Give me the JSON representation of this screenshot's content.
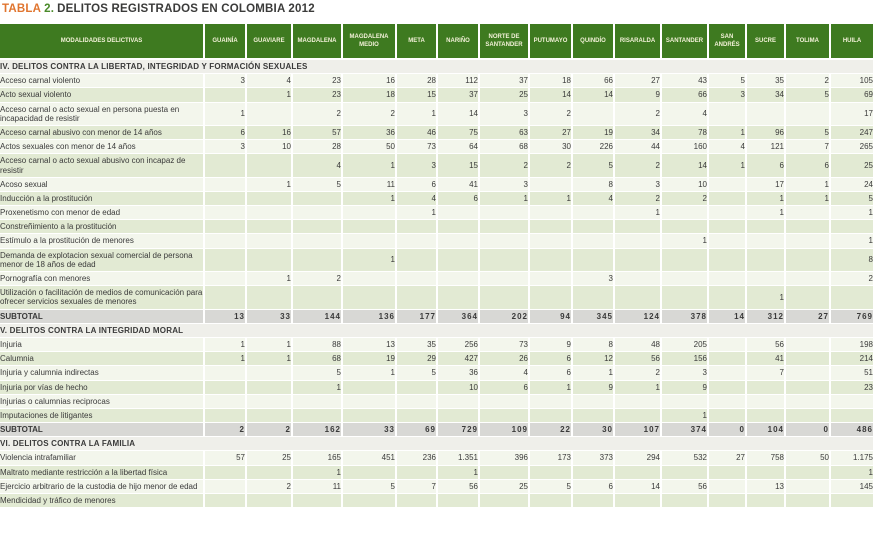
{
  "title": {
    "prefix": "TABLA",
    "number": "2.",
    "text": "DELITOS REGISTRADOS EN COLOMBIA 2012"
  },
  "colors": {
    "header_green": "#3e7a20",
    "header_text": "#f3f1d8",
    "row_light": "#f3f6ec",
    "row_green": "#e2ead3",
    "subtotal_gray": "#d8d8d5",
    "section_bg": "#efefea",
    "title_orange": "#e0752f",
    "title_green": "#4a8a2a",
    "text_dark": "#3b3b3a"
  },
  "table": {
    "label_header": "MODALIDADES DELICTIVAS",
    "columns": [
      "GUAINÍA",
      "GUAVIARE",
      "MAGDALENA",
      "MAGDALENA MEDIO",
      "META",
      "NARIÑO",
      "NORTE DE SANTANDER",
      "PUTUMAYO",
      "QUINDÍO",
      "RISARALDA",
      "SANTANDER",
      "SAN ANDRÉS",
      "SUCRE",
      "TOLIMA",
      "HUILA"
    ],
    "sections": [
      {
        "title": "IV. DELITOS CONTRA LA LIBERTAD, INTEGRIDAD Y FORMACIÓN SEXUALES",
        "rows": [
          {
            "label": "Acceso carnal violento",
            "values": [
              "3",
              "4",
              "23",
              "16",
              "28",
              "112",
              "37",
              "18",
              "66",
              "27",
              "43",
              "5",
              "35",
              "2",
              "105"
            ]
          },
          {
            "label": "Acto sexual violento",
            "values": [
              "",
              "1",
              "23",
              "18",
              "15",
              "37",
              "25",
              "14",
              "14",
              "9",
              "66",
              "3",
              "34",
              "5",
              "69"
            ]
          },
          {
            "label": "Acceso carnal o acto sexual en persona puesta en incapacidad de resistir",
            "values": [
              "1",
              "",
              "2",
              "2",
              "1",
              "14",
              "3",
              "2",
              "",
              "2",
              "4",
              "",
              "",
              "",
              "17"
            ]
          },
          {
            "label": "Acceso carnal abusivo con menor de 14 años",
            "values": [
              "6",
              "16",
              "57",
              "36",
              "46",
              "75",
              "63",
              "27",
              "19",
              "34",
              "78",
              "1",
              "96",
              "5",
              "247"
            ]
          },
          {
            "label": "Actos sexuales con menor de 14 años",
            "values": [
              "3",
              "10",
              "28",
              "50",
              "73",
              "64",
              "68",
              "30",
              "226",
              "44",
              "160",
              "4",
              "121",
              "7",
              "265"
            ]
          },
          {
            "label": "Acceso carnal o acto sexual abusivo con incapaz de resistir",
            "values": [
              "",
              "",
              "4",
              "1",
              "3",
              "15",
              "2",
              "2",
              "5",
              "2",
              "14",
              "1",
              "6",
              "6",
              "25"
            ]
          },
          {
            "label": "Acoso sexual",
            "values": [
              "",
              "1",
              "5",
              "11",
              "6",
              "41",
              "3",
              "",
              "8",
              "3",
              "10",
              "",
              "17",
              "1",
              "24"
            ]
          },
          {
            "label": "Inducción a la prostitución",
            "values": [
              "",
              "",
              "",
              "1",
              "4",
              "6",
              "1",
              "1",
              "4",
              "2",
              "2",
              "",
              "1",
              "1",
              "5"
            ]
          },
          {
            "label": "Proxenetismo con menor de edad",
            "values": [
              "",
              "",
              "",
              "",
              "1",
              "",
              "",
              "",
              "",
              "1",
              "",
              "",
              "1",
              "",
              "1"
            ]
          },
          {
            "label": "Constreñimiento a la prostitución",
            "values": [
              "",
              "",
              "",
              "",
              "",
              "",
              "",
              "",
              "",
              "",
              "",
              "",
              "",
              "",
              ""
            ]
          },
          {
            "label": "Estímulo a la prostitución de menores",
            "values": [
              "",
              "",
              "",
              "",
              "",
              "",
              "",
              "",
              "",
              "",
              "1",
              "",
              "",
              "",
              "1"
            ]
          },
          {
            "label": "Demanda de explotacion sexual comercial de persona menor de 18 años de edad",
            "values": [
              "",
              "",
              "",
              "1",
              "",
              "",
              "",
              "",
              "",
              "",
              "",
              "",
              "",
              "",
              "8"
            ]
          },
          {
            "label": "Pornografía con menores",
            "values": [
              "",
              "1",
              "2",
              "",
              "",
              "",
              "",
              "",
              "3",
              "",
              "",
              "",
              "",
              "",
              "2"
            ]
          },
          {
            "label": "Utilización o facilitación de medios de comunicación para ofrecer servicios sexuales de menores",
            "values": [
              "",
              "",
              "",
              "",
              "",
              "",
              "",
              "",
              "",
              "",
              "",
              "",
              "1",
              "",
              ""
            ]
          },
          {
            "label": "SUBTOTAL",
            "subtotal": true,
            "values": [
              "13",
              "33",
              "144",
              "136",
              "177",
              "364",
              "202",
              "94",
              "345",
              "124",
              "378",
              "14",
              "312",
              "27",
              "769"
            ]
          }
        ]
      },
      {
        "title": "V. DELITOS CONTRA LA INTEGRIDAD MORAL",
        "rows": [
          {
            "label": "Injuria",
            "values": [
              "1",
              "1",
              "88",
              "13",
              "35",
              "256",
              "73",
              "9",
              "8",
              "48",
              "205",
              "",
              "56",
              "",
              "198"
            ]
          },
          {
            "label": "Calumnia",
            "values": [
              "1",
              "1",
              "68",
              "19",
              "29",
              "427",
              "26",
              "6",
              "12",
              "56",
              "156",
              "",
              "41",
              "",
              "214"
            ]
          },
          {
            "label": "Injuria y calumnia indirectas",
            "values": [
              "",
              "",
              "5",
              "1",
              "5",
              "36",
              "4",
              "6",
              "1",
              "2",
              "3",
              "",
              "7",
              "",
              "51"
            ]
          },
          {
            "label": "Injuria por vías de hecho",
            "values": [
              "",
              "",
              "1",
              "",
              "",
              "10",
              "6",
              "1",
              "9",
              "1",
              "9",
              "",
              "",
              "",
              "23"
            ]
          },
          {
            "label": "Injurias o calumnias reciprocas",
            "values": [
              "",
              "",
              "",
              "",
              "",
              "",
              "",
              "",
              "",
              "",
              "",
              "",
              "",
              "",
              ""
            ]
          },
          {
            "label": "Imputaciones de litigantes",
            "values": [
              "",
              "",
              "",
              "",
              "",
              "",
              "",
              "",
              "",
              "",
              "1",
              "",
              "",
              "",
              ""
            ]
          },
          {
            "label": "SUBTOTAL",
            "subtotal": true,
            "values": [
              "2",
              "2",
              "162",
              "33",
              "69",
              "729",
              "109",
              "22",
              "30",
              "107",
              "374",
              "0",
              "104",
              "0",
              "486"
            ]
          }
        ]
      },
      {
        "title": "VI. DELITOS CONTRA LA FAMILIA",
        "rows": [
          {
            "label": "Violencia intrafamiliar",
            "values": [
              "57",
              "25",
              "165",
              "451",
              "236",
              "1.351",
              "396",
              "173",
              "373",
              "294",
              "532",
              "27",
              "758",
              "50",
              "1.175"
            ]
          },
          {
            "label": "Maltrato mediante restricción a la libertad física",
            "values": [
              "",
              "",
              "1",
              "",
              "",
              "1",
              "",
              "",
              "",
              "",
              "",
              "",
              "",
              "",
              "1"
            ]
          },
          {
            "label": "Ejercicio arbitrario de la custodia de hijo menor de edad",
            "values": [
              "",
              "2",
              "11",
              "5",
              "7",
              "56",
              "25",
              "5",
              "6",
              "14",
              "56",
              "",
              "13",
              "",
              "145"
            ]
          },
          {
            "label": "Mendicidad y tráfico de menores",
            "values": [
              "",
              "",
              "",
              "",
              "",
              "",
              "",
              "",
              "",
              "",
              "",
              "",
              "",
              "",
              ""
            ]
          }
        ]
      }
    ]
  }
}
